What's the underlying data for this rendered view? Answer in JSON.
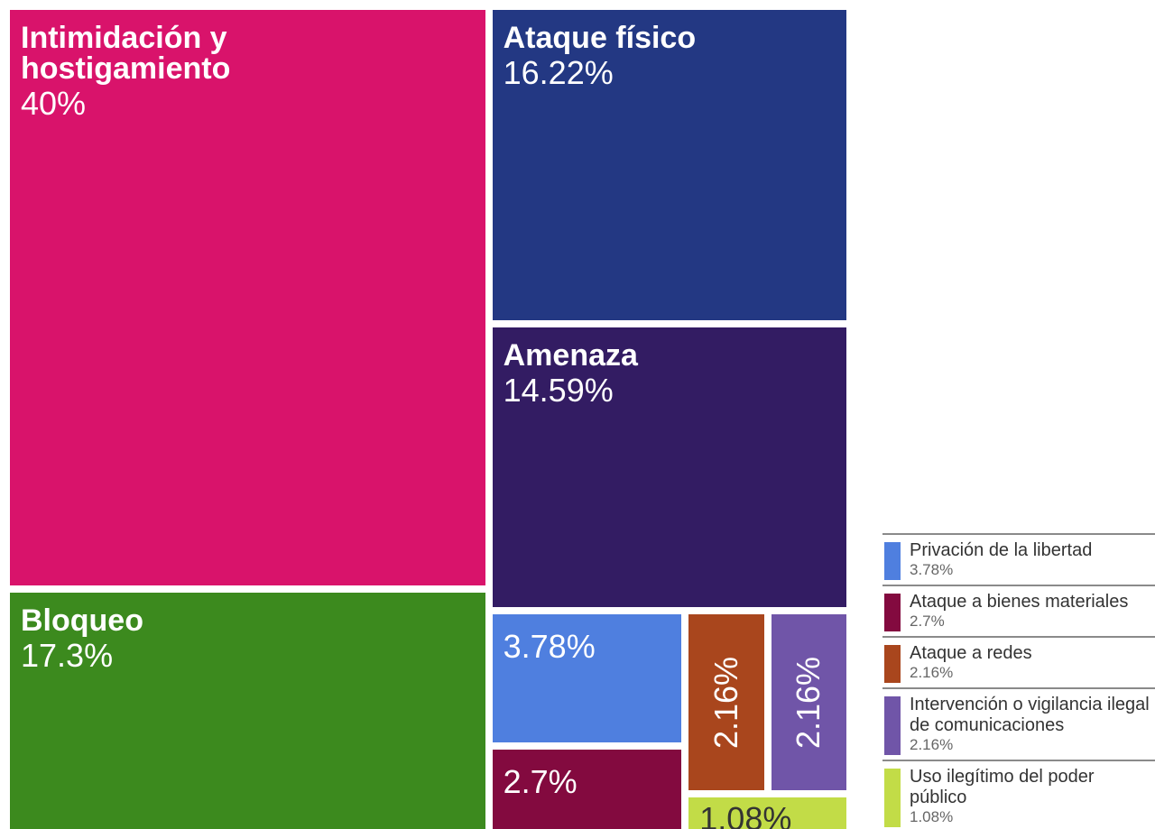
{
  "chart_data": {
    "type": "treemap",
    "categories": [
      "Intimidación y hostigamiento",
      "Bloqueo",
      "Ataque físico",
      "Amenaza",
      "Privación de la libertad",
      "Ataque a bienes materiales",
      "Ataque a redes",
      "Intervención o vigilancia ilegal de comunicaciones",
      "Uso ilegítimo del poder público"
    ],
    "values": [
      40,
      17.3,
      16.22,
      14.59,
      3.78,
      2.7,
      2.16,
      2.16,
      1.08
    ],
    "value_labels": [
      "40%",
      "17.3%",
      "16.22%",
      "14.59%",
      "3.78%",
      "2.7%",
      "2.16%",
      "2.16%",
      "1.08%"
    ],
    "colors": [
      "#d9136b",
      "#3c8a1e",
      "#233883",
      "#331c63",
      "#4f7fdf",
      "#830a3f",
      "#a9461d",
      "#7055a8",
      "#c2dc47"
    ]
  }
}
